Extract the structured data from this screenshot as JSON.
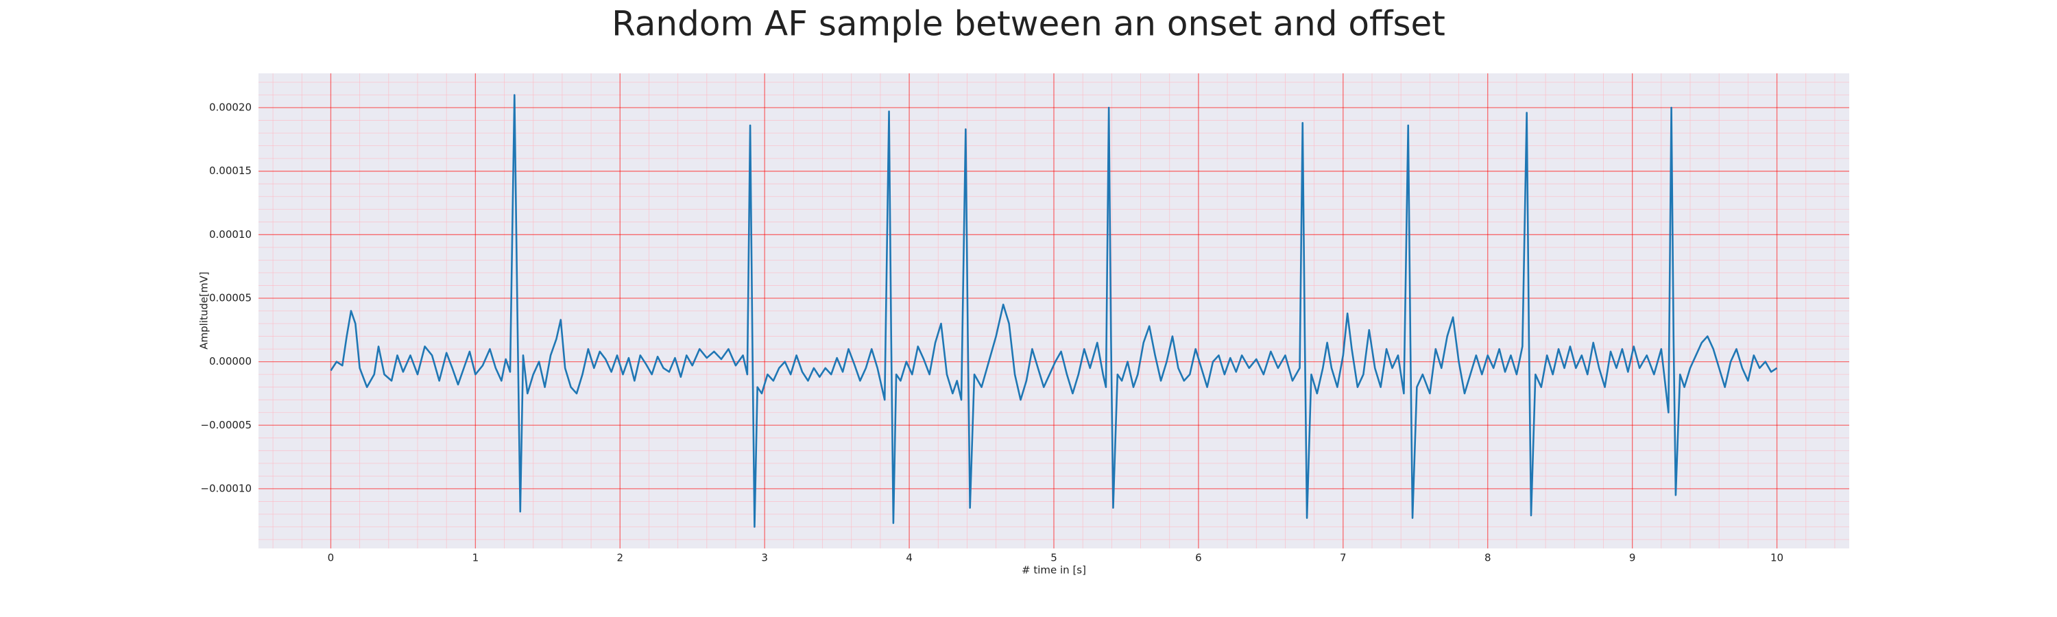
{
  "chart_data": {
    "type": "line",
    "title": "Random AF sample between an onset and offset",
    "xlabel": "# time in [s]",
    "ylabel": "Amplitude[mV]",
    "color": "#1f77b4",
    "grid": true,
    "minor_grid": true,
    "xlim": [
      -0.5,
      10.5
    ],
    "ylim": [
      -0.000147,
      0.000227
    ],
    "xticks": [
      0,
      1,
      2,
      3,
      4,
      5,
      6,
      7,
      8,
      9,
      10
    ],
    "yticks": [
      {
        "value": -0.0001,
        "label": "−0.00010"
      },
      {
        "value": -5e-05,
        "label": "−0.00005"
      },
      {
        "value": 0,
        "label": "0.00000"
      },
      {
        "value": 5e-05,
        "label": "0.00005"
      },
      {
        "value": 0.0001,
        "label": "0.00010"
      },
      {
        "value": 0.00015,
        "label": "0.00015"
      },
      {
        "value": 0.0002,
        "label": "0.00020"
      }
    ],
    "x": [
      0,
      0.04,
      0.08,
      0.11,
      0.14,
      0.17,
      0.2,
      0.25,
      0.3,
      0.33,
      0.37,
      0.42,
      0.46,
      0.5,
      0.55,
      0.6,
      0.65,
      0.7,
      0.75,
      0.8,
      0.84,
      0.88,
      0.92,
      0.96,
      1,
      1.05,
      1.1,
      1.14,
      1.18,
      1.21,
      1.24,
      1.27,
      1.29,
      1.31,
      1.33,
      1.36,
      1.4,
      1.44,
      1.48,
      1.52,
      1.56,
      1.59,
      1.62,
      1.66,
      1.7,
      1.74,
      1.78,
      1.82,
      1.86,
      1.9,
      1.94,
      1.98,
      2.02,
      2.06,
      2.1,
      2.14,
      2.18,
      2.22,
      2.26,
      2.3,
      2.34,
      2.38,
      2.42,
      2.46,
      2.5,
      2.55,
      2.6,
      2.65,
      2.7,
      2.75,
      2.8,
      2.85,
      2.88,
      2.9,
      2.915,
      2.93,
      2.95,
      2.98,
      3.02,
      3.06,
      3.1,
      3.14,
      3.18,
      3.22,
      3.26,
      3.3,
      3.34,
      3.38,
      3.42,
      3.46,
      3.5,
      3.54,
      3.58,
      3.62,
      3.66,
      3.7,
      3.74,
      3.78,
      3.83,
      3.86,
      3.875,
      3.89,
      3.91,
      3.94,
      3.98,
      4.02,
      4.06,
      4.1,
      4.14,
      4.18,
      4.22,
      4.26,
      4.3,
      4.33,
      4.36,
      4.39,
      4.405,
      4.42,
      4.45,
      4.5,
      4.55,
      4.6,
      4.65,
      4.69,
      4.73,
      4.77,
      4.81,
      4.85,
      4.89,
      4.93,
      4.97,
      5.01,
      5.05,
      5.09,
      5.13,
      5.17,
      5.21,
      5.25,
      5.3,
      5.34,
      5.36,
      5.38,
      5.395,
      5.41,
      5.44,
      5.47,
      5.51,
      5.55,
      5.58,
      5.62,
      5.66,
      5.7,
      5.74,
      5.78,
      5.82,
      5.86,
      5.9,
      5.94,
      5.98,
      6.02,
      6.06,
      6.1,
      6.14,
      6.18,
      6.22,
      6.26,
      6.3,
      6.35,
      6.4,
      6.45,
      6.5,
      6.55,
      6.6,
      6.65,
      6.7,
      6.72,
      6.735,
      6.75,
      6.78,
      6.82,
      6.86,
      6.89,
      6.92,
      6.96,
      7,
      7.03,
      7.06,
      7.1,
      7.14,
      7.18,
      7.22,
      7.26,
      7.3,
      7.34,
      7.38,
      7.42,
      7.45,
      7.465,
      7.48,
      7.51,
      7.55,
      7.6,
      7.64,
      7.68,
      7.72,
      7.76,
      7.8,
      7.84,
      7.88,
      7.92,
      7.96,
      8,
      8.04,
      8.08,
      8.12,
      8.16,
      8.2,
      8.24,
      8.27,
      8.285,
      8.3,
      8.33,
      8.37,
      8.41,
      8.45,
      8.49,
      8.53,
      8.57,
      8.61,
      8.65,
      8.69,
      8.73,
      8.77,
      8.81,
      8.85,
      8.89,
      8.93,
      8.97,
      9.01,
      9.05,
      9.1,
      9.15,
      9.2,
      9.25,
      9.27,
      9.285,
      9.3,
      9.33,
      9.36,
      9.4,
      9.44,
      9.48,
      9.52,
      9.56,
      9.6,
      9.64,
      9.68,
      9.72,
      9.76,
      9.8,
      9.84,
      9.88,
      9.92,
      9.96,
      10
    ],
    "values": [
      -7e-06,
      0,
      -3e-06,
      2e-05,
      4e-05,
      3e-05,
      -5e-06,
      -2e-05,
      -1e-05,
      1.2e-05,
      -1e-05,
      -1.5e-05,
      5e-06,
      -8e-06,
      5e-06,
      -1e-05,
      1.2e-05,
      5e-06,
      -1.5e-05,
      7e-06,
      -5e-06,
      -1.8e-05,
      -5e-06,
      8e-06,
      -1e-05,
      -3e-06,
      1e-05,
      -5e-06,
      -1.5e-05,
      2e-06,
      -8e-06,
      0.00021,
      4e-05,
      -0.000118,
      5e-06,
      -2.5e-05,
      -1e-05,
      0,
      -2e-05,
      5e-06,
      1.8e-05,
      3.3e-05,
      -5e-06,
      -2e-05,
      -2.5e-05,
      -1e-05,
      1e-05,
      -5e-06,
      8e-06,
      2e-06,
      -8e-06,
      5e-06,
      -1e-05,
      3e-06,
      -1.5e-05,
      5e-06,
      -2e-06,
      -1e-05,
      4e-06,
      -5e-06,
      -8e-06,
      3e-06,
      -1.2e-05,
      5e-06,
      -3e-06,
      1e-05,
      3e-06,
      8e-06,
      2e-06,
      1e-05,
      -3e-06,
      5e-06,
      -1e-05,
      0.000186,
      2e-05,
      -0.00013,
      -2e-05,
      -2.5e-05,
      -1e-05,
      -1.5e-05,
      -5e-06,
      0,
      -1e-05,
      5e-06,
      -8e-06,
      -1.5e-05,
      -5e-06,
      -1.2e-05,
      -5e-06,
      -1e-05,
      3e-06,
      -8e-06,
      1e-05,
      -2e-06,
      -1.5e-05,
      -5e-06,
      1e-05,
      -5e-06,
      -3e-05,
      0.000197,
      2e-05,
      -0.000127,
      -1e-05,
      -1.5e-05,
      0,
      -1e-05,
      1.2e-05,
      2e-06,
      -1e-05,
      1.5e-05,
      3e-05,
      -1e-05,
      -2.5e-05,
      -1.5e-05,
      -3e-05,
      0.000183,
      2e-05,
      -0.000115,
      -1e-05,
      -2e-05,
      0,
      2e-05,
      4.5e-05,
      3e-05,
      -1e-05,
      -3e-05,
      -1.5e-05,
      1e-05,
      -5e-06,
      -2e-05,
      -1e-05,
      0,
      8e-06,
      -1e-05,
      -2.5e-05,
      -1e-05,
      1e-05,
      -5e-06,
      1.5e-05,
      -1e-05,
      -2e-05,
      0.0002,
      2e-05,
      -0.000115,
      -1e-05,
      -1.5e-05,
      0,
      -2e-05,
      -1e-05,
      1.5e-05,
      2.8e-05,
      5e-06,
      -1.5e-05,
      0,
      2e-05,
      -5e-06,
      -1.5e-05,
      -1e-05,
      1e-05,
      -5e-06,
      -2e-05,
      0,
      5e-06,
      -1e-05,
      3e-06,
      -8e-06,
      5e-06,
      -5e-06,
      2e-06,
      -1e-05,
      8e-06,
      -5e-06,
      5e-06,
      -1.5e-05,
      -5e-06,
      0.000188,
      2e-05,
      -0.000123,
      -1e-05,
      -2.5e-05,
      -5e-06,
      1.5e-05,
      -5e-06,
      -2e-05,
      5e-06,
      3.8e-05,
      1e-05,
      -2e-05,
      -1e-05,
      2.5e-05,
      -5e-06,
      -2e-05,
      1e-05,
      -5e-06,
      5e-06,
      -2.5e-05,
      0.000186,
      2e-05,
      -0.000123,
      -2e-05,
      -1e-05,
      -2.5e-05,
      1e-05,
      -5e-06,
      2e-05,
      3.5e-05,
      0,
      -2.5e-05,
      -1e-05,
      5e-06,
      -1e-05,
      5e-06,
      -5e-06,
      1e-05,
      -8e-06,
      5e-06,
      -1e-05,
      1.2e-05,
      0.000196,
      2e-05,
      -0.000121,
      -1e-05,
      -2e-05,
      5e-06,
      -1e-05,
      1e-05,
      -5e-06,
      1.2e-05,
      -5e-06,
      5e-06,
      -1e-05,
      1.5e-05,
      -5e-06,
      -2e-05,
      8e-06,
      -5e-06,
      1e-05,
      -8e-06,
      1.2e-05,
      -5e-06,
      5e-06,
      -1e-05,
      1e-05,
      -4e-05,
      0.0002,
      2e-05,
      -0.000105,
      -1e-05,
      -2e-05,
      -5e-06,
      5e-06,
      1.5e-05,
      2e-05,
      1e-05,
      -5e-06,
      -2e-05,
      0,
      1e-05,
      -5e-06,
      -1.5e-05,
      5e-06,
      -5e-06,
      0,
      -8e-06,
      -5e-06
    ]
  }
}
